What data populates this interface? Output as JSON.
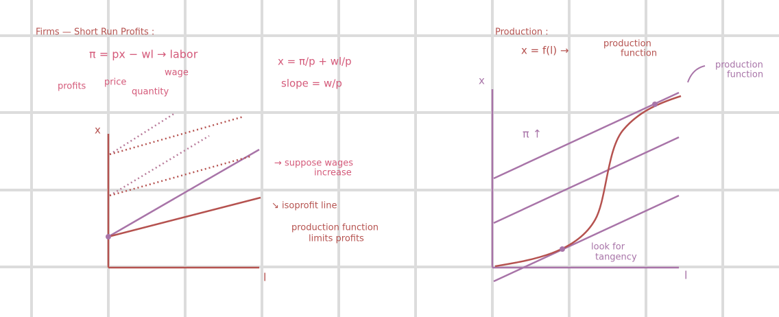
{
  "left": {
    "heading": "Firms — Short Run Profits :",
    "equation": "π = px − wl → labor",
    "labels": {
      "profits": "profits",
      "price": "price",
      "quantity": "quantity",
      "wage": "wage"
    },
    "rearranged": "x = π/p + wl/p",
    "slope": "slope = w/p",
    "graph": {
      "y_axis": "x",
      "x_axis": "l",
      "notes": [
        "→ suppose wages",
        "increase",
        "↘ isoprofit line",
        "production function",
        "limits profits"
      ]
    }
  },
  "right": {
    "heading": "Production :",
    "equation": "x = f(l) →",
    "equation_note": [
      "production",
      "function"
    ],
    "curve_note": [
      "production",
      "function"
    ],
    "profit_arrow": "π ↑",
    "tangency": [
      "look for",
      "tangency"
    ],
    "graph": {
      "y_axis": "x",
      "x_axis": "l"
    }
  }
}
